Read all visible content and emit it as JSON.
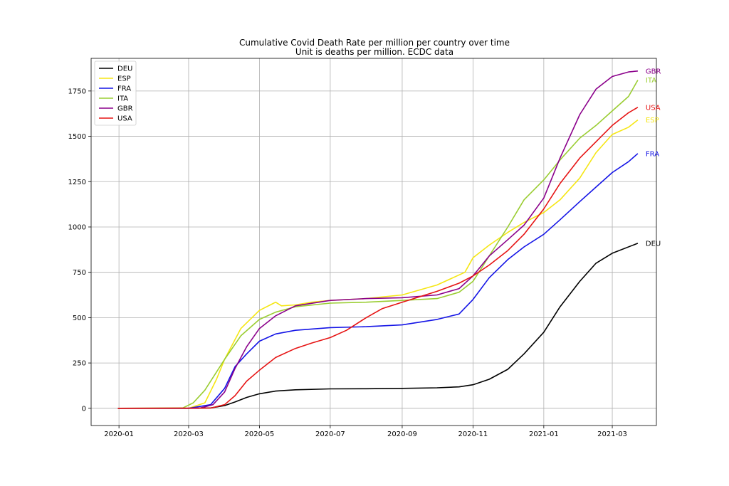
{
  "chart_data": {
    "type": "line",
    "title": "Cumulative Covid Death Rate per million per country over time",
    "subtitle": "Unit is deaths per million. ECDC data",
    "xlabel": "",
    "ylabel": "",
    "x_axis": "date",
    "xlim": [
      "2019-12-08",
      "2021-04-08"
    ],
    "ylim": [
      -95,
      1930
    ],
    "xticks": [
      "2020-01",
      "2020-03",
      "2020-05",
      "2020-07",
      "2020-09",
      "2020-11",
      "2021-01",
      "2021-03"
    ],
    "xtick_dates": [
      "2020-01-01",
      "2020-03-01",
      "2020-05-01",
      "2020-07-01",
      "2020-09-01",
      "2020-11-01",
      "2021-01-01",
      "2021-03-01"
    ],
    "yticks": [
      0,
      250,
      500,
      750,
      1000,
      1250,
      1500,
      1750
    ],
    "ytick_labels": [
      "0",
      "250",
      "500",
      "750",
      "1000",
      "1250",
      "1500",
      "1750"
    ],
    "grid": true,
    "legend_position": "top-left",
    "end_labels": true,
    "series": [
      {
        "name": "DEU",
        "color": "#000000",
        "points": [
          [
            "2019-12-31",
            0
          ],
          [
            "2020-03-01",
            0
          ],
          [
            "2020-03-20",
            2
          ],
          [
            "2020-04-01",
            15
          ],
          [
            "2020-04-10",
            35
          ],
          [
            "2020-04-20",
            60
          ],
          [
            "2020-05-01",
            80
          ],
          [
            "2020-05-15",
            95
          ],
          [
            "2020-06-01",
            102
          ],
          [
            "2020-07-01",
            107
          ],
          [
            "2020-08-01",
            108
          ],
          [
            "2020-09-01",
            110
          ],
          [
            "2020-10-01",
            113
          ],
          [
            "2020-10-20",
            118
          ],
          [
            "2020-11-01",
            130
          ],
          [
            "2020-11-15",
            160
          ],
          [
            "2020-12-01",
            215
          ],
          [
            "2020-12-15",
            300
          ],
          [
            "2021-01-01",
            420
          ],
          [
            "2021-01-15",
            560
          ],
          [
            "2021-02-01",
            700
          ],
          [
            "2021-02-15",
            800
          ],
          [
            "2021-03-01",
            855
          ],
          [
            "2021-03-23",
            910
          ]
        ]
      },
      {
        "name": "ESP",
        "color": "#f5e613",
        "points": [
          [
            "2019-12-31",
            0
          ],
          [
            "2020-03-01",
            0
          ],
          [
            "2020-03-15",
            30
          ],
          [
            "2020-03-25",
            160
          ],
          [
            "2020-04-01",
            270
          ],
          [
            "2020-04-15",
            440
          ],
          [
            "2020-05-01",
            540
          ],
          [
            "2020-05-15",
            585
          ],
          [
            "2020-05-20",
            565
          ],
          [
            "2020-06-01",
            570
          ],
          [
            "2020-06-15",
            585
          ],
          [
            "2020-07-01",
            595
          ],
          [
            "2020-08-01",
            605
          ],
          [
            "2020-09-01",
            625
          ],
          [
            "2020-10-01",
            680
          ],
          [
            "2020-10-25",
            750
          ],
          [
            "2020-11-01",
            830
          ],
          [
            "2020-11-15",
            900
          ],
          [
            "2020-12-01",
            970
          ],
          [
            "2020-12-15",
            1025
          ],
          [
            "2021-01-01",
            1080
          ],
          [
            "2021-01-15",
            1150
          ],
          [
            "2021-02-01",
            1270
          ],
          [
            "2021-02-15",
            1410
          ],
          [
            "2021-03-01",
            1510
          ],
          [
            "2021-03-15",
            1550
          ],
          [
            "2021-03-23",
            1590
          ]
        ]
      },
      {
        "name": "FRA",
        "color": "#1414e6",
        "points": [
          [
            "2019-12-31",
            0
          ],
          [
            "2020-03-01",
            0
          ],
          [
            "2020-03-20",
            20
          ],
          [
            "2020-04-01",
            110
          ],
          [
            "2020-04-10",
            230
          ],
          [
            "2020-04-20",
            300
          ],
          [
            "2020-05-01",
            370
          ],
          [
            "2020-05-15",
            410
          ],
          [
            "2020-06-01",
            430
          ],
          [
            "2020-07-01",
            445
          ],
          [
            "2020-08-01",
            450
          ],
          [
            "2020-09-01",
            460
          ],
          [
            "2020-10-01",
            490
          ],
          [
            "2020-10-20",
            520
          ],
          [
            "2020-11-01",
            600
          ],
          [
            "2020-11-15",
            720
          ],
          [
            "2020-12-01",
            820
          ],
          [
            "2020-12-15",
            890
          ],
          [
            "2021-01-01",
            960
          ],
          [
            "2021-01-15",
            1040
          ],
          [
            "2021-02-01",
            1140
          ],
          [
            "2021-02-15",
            1220
          ],
          [
            "2021-03-01",
            1300
          ],
          [
            "2021-03-15",
            1360
          ],
          [
            "2021-03-23",
            1405
          ]
        ]
      },
      {
        "name": "ITA",
        "color": "#9acd32",
        "points": [
          [
            "2019-12-31",
            0
          ],
          [
            "2020-02-25",
            2
          ],
          [
            "2020-03-05",
            30
          ],
          [
            "2020-03-15",
            100
          ],
          [
            "2020-04-01",
            270
          ],
          [
            "2020-04-15",
            400
          ],
          [
            "2020-05-01",
            490
          ],
          [
            "2020-05-15",
            530
          ],
          [
            "2020-06-01",
            560
          ],
          [
            "2020-07-01",
            580
          ],
          [
            "2020-08-01",
            585
          ],
          [
            "2020-09-01",
            595
          ],
          [
            "2020-10-01",
            605
          ],
          [
            "2020-10-20",
            640
          ],
          [
            "2020-11-01",
            700
          ],
          [
            "2020-11-15",
            840
          ],
          [
            "2020-12-01",
            1000
          ],
          [
            "2020-12-15",
            1150
          ],
          [
            "2021-01-01",
            1260
          ],
          [
            "2021-01-15",
            1370
          ],
          [
            "2021-02-01",
            1490
          ],
          [
            "2021-02-15",
            1560
          ],
          [
            "2021-03-01",
            1640
          ],
          [
            "2021-03-15",
            1720
          ],
          [
            "2021-03-23",
            1810
          ]
        ]
      },
      {
        "name": "GBR",
        "color": "#8b008b",
        "points": [
          [
            "2019-12-31",
            0
          ],
          [
            "2020-03-10",
            0
          ],
          [
            "2020-03-22",
            20
          ],
          [
            "2020-04-01",
            90
          ],
          [
            "2020-04-10",
            220
          ],
          [
            "2020-04-20",
            340
          ],
          [
            "2020-05-01",
            440
          ],
          [
            "2020-05-15",
            510
          ],
          [
            "2020-06-01",
            565
          ],
          [
            "2020-07-01",
            595
          ],
          [
            "2020-08-01",
            605
          ],
          [
            "2020-09-01",
            610
          ],
          [
            "2020-10-01",
            625
          ],
          [
            "2020-10-20",
            660
          ],
          [
            "2020-11-01",
            730
          ],
          [
            "2020-11-15",
            840
          ],
          [
            "2020-12-01",
            930
          ],
          [
            "2020-12-15",
            1010
          ],
          [
            "2021-01-01",
            1160
          ],
          [
            "2021-01-15",
            1380
          ],
          [
            "2021-02-01",
            1620
          ],
          [
            "2021-02-15",
            1760
          ],
          [
            "2021-03-01",
            1830
          ],
          [
            "2021-03-15",
            1855
          ],
          [
            "2021-03-23",
            1860
          ]
        ]
      },
      {
        "name": "USA",
        "color": "#e61414",
        "points": [
          [
            "2019-12-31",
            0
          ],
          [
            "2020-03-20",
            1
          ],
          [
            "2020-04-01",
            20
          ],
          [
            "2020-04-10",
            70
          ],
          [
            "2020-04-20",
            150
          ],
          [
            "2020-05-01",
            210
          ],
          [
            "2020-05-15",
            280
          ],
          [
            "2020-06-01",
            330
          ],
          [
            "2020-06-15",
            360
          ],
          [
            "2020-07-01",
            390
          ],
          [
            "2020-07-15",
            430
          ],
          [
            "2020-08-01",
            500
          ],
          [
            "2020-08-15",
            550
          ],
          [
            "2020-09-01",
            585
          ],
          [
            "2020-10-01",
            645
          ],
          [
            "2020-10-20",
            690
          ],
          [
            "2020-11-01",
            730
          ],
          [
            "2020-11-15",
            790
          ],
          [
            "2020-12-01",
            870
          ],
          [
            "2020-12-15",
            960
          ],
          [
            "2021-01-01",
            1100
          ],
          [
            "2021-01-15",
            1240
          ],
          [
            "2021-02-01",
            1380
          ],
          [
            "2021-02-15",
            1470
          ],
          [
            "2021-03-01",
            1560
          ],
          [
            "2021-03-15",
            1630
          ],
          [
            "2021-03-23",
            1660
          ]
        ]
      }
    ]
  }
}
